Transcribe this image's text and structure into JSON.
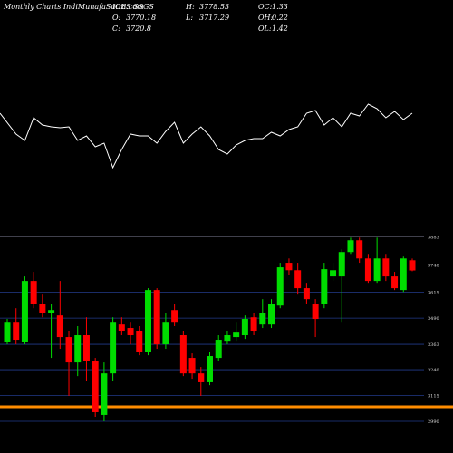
{
  "chart_data": {
    "type": "candlestick",
    "title": "Monthly Charts IndiMunafaSutra.com",
    "subtitle": "ICES SSGS",
    "stats": [
      {
        "label": "O:",
        "value": 3770.18
      },
      {
        "label": "H:",
        "value": 3778.53
      },
      {
        "label": "OC:",
        "value": 1.33
      },
      {
        "label": "C:",
        "value": 3720.8
      },
      {
        "label": "L:",
        "value": 3717.29
      },
      {
        "label": "OH:",
        "value": 0.22
      },
      {
        "label": "OL:",
        "value": 1.42
      }
    ],
    "up_color": "#00dd00",
    "down_color": "#ff0000",
    "open": [
      3372,
      3472,
      3372,
      3670,
      3560,
      3516,
      3503,
      3398,
      3275,
      3407,
      3284,
      3021,
      3222,
      3459,
      3442,
      3429,
      3328,
      3626,
      3363,
      3529,
      3407,
      3297,
      3222,
      3179,
      3297,
      3380,
      3398,
      3407,
      3494,
      3459,
      3459,
      3551,
      3758,
      3722,
      3635,
      3560,
      3560,
      3692,
      3692,
      3810,
      3867,
      3779,
      3670,
      3779,
      3692,
      3626,
      3770.18
    ],
    "high": [
      3486,
      3538,
      3692,
      3714,
      3604,
      3560,
      3670,
      3429,
      3451,
      3494,
      3297,
      3275,
      3494,
      3494,
      3472,
      3451,
      3635,
      3635,
      3516,
      3560,
      3429,
      3319,
      3253,
      3328,
      3407,
      3429,
      3472,
      3503,
      3516,
      3582,
      3582,
      3758,
      3779,
      3758,
      3661,
      3582,
      3758,
      3758,
      3823,
      3880,
      3880,
      3801,
      3880,
      3801,
      3714,
      3788,
      3778.53
    ],
    "low": [
      3363,
      3363,
      3363,
      3538,
      3494,
      3297,
      3341,
      3113,
      3209,
      3187,
      3012,
      2990,
      3187,
      3407,
      3363,
      3310,
      3310,
      3341,
      3341,
      3451,
      3209,
      3196,
      3113,
      3165,
      3284,
      3363,
      3380,
      3389,
      3407,
      3442,
      3442,
      3538,
      3701,
      3604,
      3560,
      3398,
      3538,
      3670,
      3472,
      3801,
      3758,
      3661,
      3661,
      3670,
      3626,
      3617,
      3717.29
    ],
    "close": [
      3472,
      3385,
      3670,
      3560,
      3516,
      3529,
      3398,
      3275,
      3407,
      3284,
      3034,
      3222,
      3472,
      3429,
      3407,
      3328,
      3626,
      3363,
      3472,
      3472,
      3222,
      3222,
      3179,
      3306,
      3385,
      3407,
      3424,
      3486,
      3429,
      3516,
      3560,
      3736,
      3722,
      3635,
      3582,
      3486,
      3727,
      3722,
      3810,
      3867,
      3779,
      3670,
      3779,
      3692,
      3635,
      3779,
      3720.8
    ],
    "ylim": [
      2990,
      3890
    ],
    "yticks": [
      2990,
      3115,
      3240,
      3363,
      3490,
      3615,
      3748,
      3883
    ],
    "support_line": {
      "value": 3060,
      "color": "#ff8c00"
    },
    "indicator": {
      "color": "#ffffff",
      "ylim": [
        15,
        90
      ],
      "values": [
        75,
        52,
        45,
        70,
        62,
        60,
        59,
        60,
        45,
        50,
        38,
        42,
        15,
        35,
        52,
        50,
        50,
        42,
        55,
        65,
        42,
        52,
        60,
        50,
        35,
        30,
        40,
        45,
        47,
        47,
        54,
        50,
        57,
        60,
        75,
        78,
        62,
        70,
        60,
        75,
        72,
        85,
        80,
        70,
        77,
        68,
        75
      ]
    }
  }
}
